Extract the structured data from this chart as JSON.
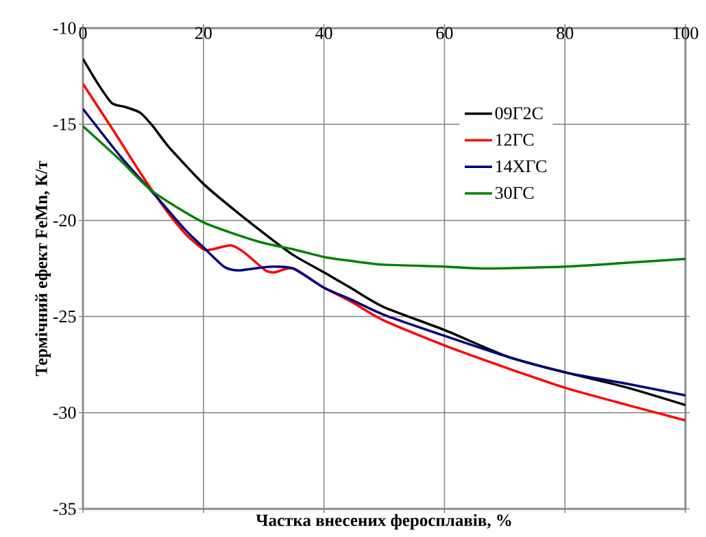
{
  "chart_data": {
    "type": "line",
    "xlabel": "Частка внесених феросплавів, %",
    "ylabel": "Термічний ефект FeMn, К/т",
    "xlim": [
      0,
      100
    ],
    "ylim": [
      -35,
      -10
    ],
    "xticks": [
      0,
      20,
      40,
      60,
      80,
      100
    ],
    "yticks": [
      -35,
      -30,
      -25,
      -20,
      -15,
      -10
    ],
    "grid": true,
    "legend": "top right",
    "marker": "none",
    "line_style": "solid",
    "series": [
      {
        "name": "09Г2С",
        "color": "#000000",
        "x": [
          0,
          2.5,
          4.8,
          7.0,
          9.5,
          11.6,
          14.3,
          20,
          25.3,
          31,
          34.9,
          40,
          44.4,
          49.9,
          60,
          70.6,
          80,
          90.4,
          100
        ],
        "values": [
          -11.6,
          -12.9,
          -13.9,
          -14.1,
          -14.4,
          -15.1,
          -16.2,
          -18.1,
          -19.5,
          -20.9,
          -21.8,
          -22.7,
          -23.5,
          -24.5,
          -25.7,
          -27.1,
          -27.9,
          -28.7,
          -29.6
        ]
      },
      {
        "name": "12ГС",
        "color": "#ff0000",
        "x": [
          0,
          4.8,
          10.1,
          13.9,
          17,
          20,
          21.5,
          24.6,
          26.9,
          30.3,
          31.8,
          34.9,
          40,
          44.4,
          49.9,
          60,
          70.6,
          80,
          90.4,
          100
        ],
        "values": [
          -12.9,
          -15.2,
          -17.8,
          -19.5,
          -20.7,
          -21.5,
          -21.5,
          -21.3,
          -21.7,
          -22.6,
          -22.7,
          -22.5,
          -23.5,
          -24.2,
          -25.2,
          -26.5,
          -27.7,
          -28.7,
          -29.6,
          -30.4
        ]
      },
      {
        "name": "14ХГС",
        "color": "#000080",
        "x": [
          0,
          6.3,
          12,
          17,
          20,
          23.4,
          25.7,
          28.4,
          31.4,
          34.9,
          40,
          44.4,
          49.9,
          60,
          70.6,
          80,
          90.4,
          100
        ],
        "values": [
          -14.2,
          -16.7,
          -18.7,
          -20.5,
          -21.4,
          -22.4,
          -22.6,
          -22.5,
          -22.4,
          -22.5,
          -23.5,
          -24.1,
          -24.9,
          -26.0,
          -27.1,
          -27.9,
          -28.5,
          -29.1
        ]
      },
      {
        "name": "30ГС",
        "color": "#008000",
        "x": [
          0,
          6.3,
          11.6,
          20,
          29.1,
          34.9,
          40,
          44.4,
          49.9,
          60,
          66.4,
          80,
          90.4,
          100
        ],
        "values": [
          -15.1,
          -16.9,
          -18.5,
          -20.1,
          -21.1,
          -21.5,
          -21.9,
          -22.1,
          -22.3,
          -22.4,
          -22.5,
          -22.4,
          -22.2,
          -22.0
        ]
      }
    ]
  }
}
